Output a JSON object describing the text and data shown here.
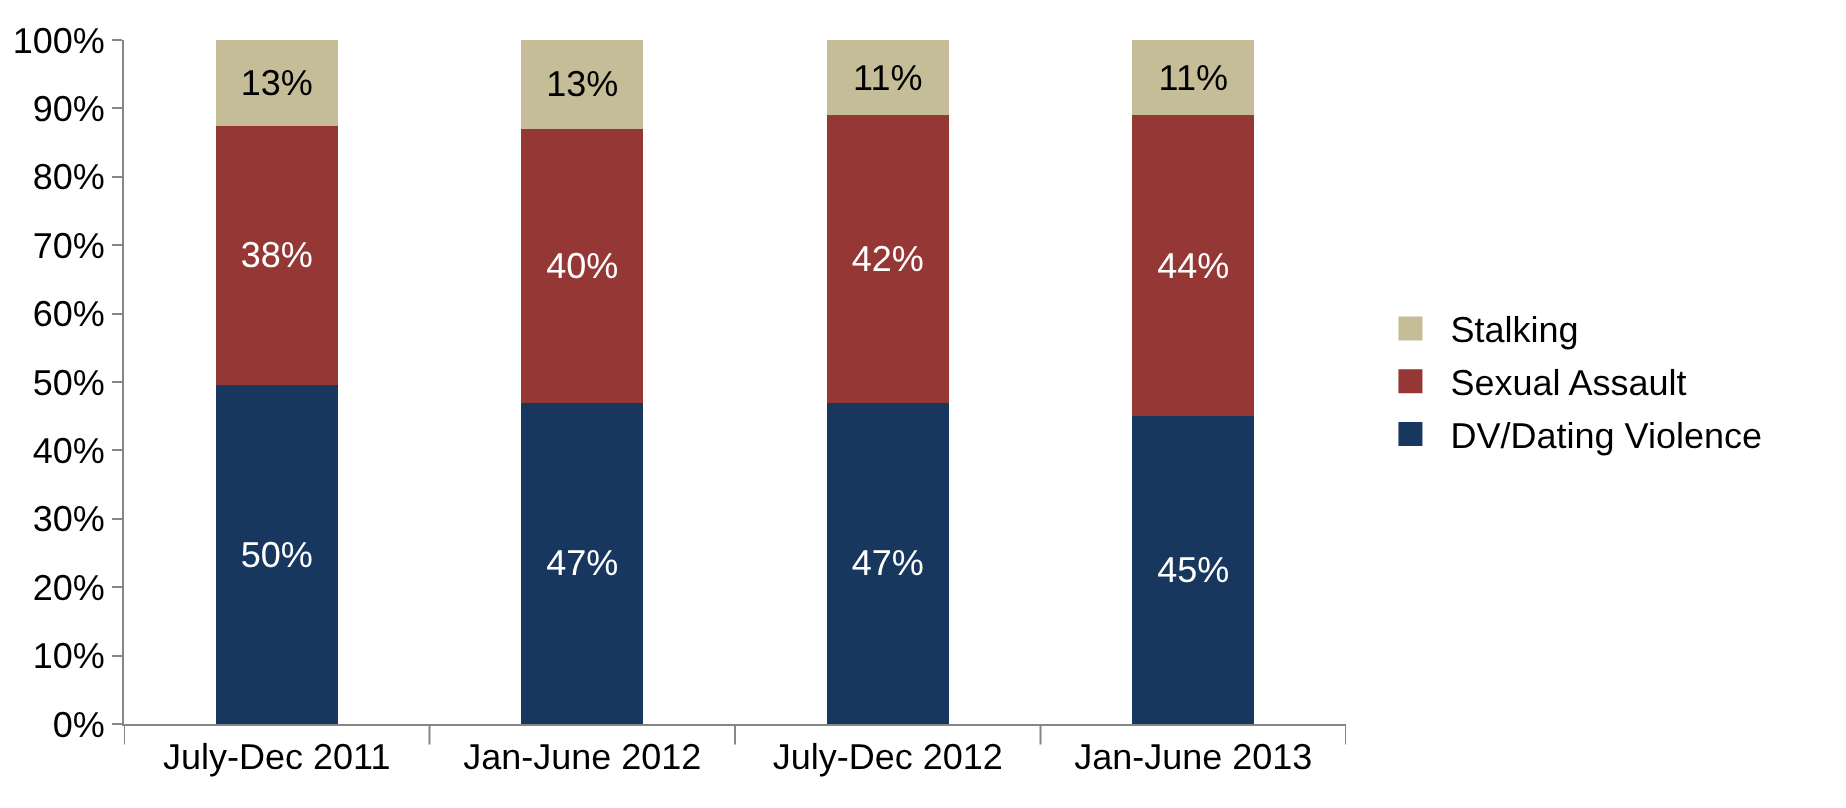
{
  "chart_data": {
    "type": "bar",
    "stacked": true,
    "categories": [
      "July-Dec 2011",
      "Jan-June 2012",
      "July-Dec 2012",
      "Jan-June 2013"
    ],
    "series": [
      {
        "name": "DV/Dating Violence",
        "color": "#17375e",
        "values": [
          49.5,
          47,
          47,
          45
        ],
        "value_labels": [
          "50%",
          "47%",
          "47%",
          "45%"
        ]
      },
      {
        "name": "Sexual Assault",
        "color": "#953735",
        "values": [
          38,
          40,
          42,
          44
        ],
        "value_labels": [
          "38%",
          "40%",
          "42%",
          "44%"
        ]
      },
      {
        "name": "Stalking",
        "color": "#c4bd97",
        "values": [
          12.5,
          13,
          11,
          11
        ],
        "value_labels": [
          "13%",
          "13%",
          "11%",
          "11%"
        ]
      }
    ],
    "ylim": [
      0,
      100
    ],
    "yticks": [
      {
        "value": 0,
        "label": "0%"
      },
      {
        "value": 10,
        "label": "10%"
      },
      {
        "value": 20,
        "label": "20%"
      },
      {
        "value": 30,
        "label": "30%"
      },
      {
        "value": 40,
        "label": "40%"
      },
      {
        "value": 50,
        "label": "50%"
      },
      {
        "value": 60,
        "label": "60%"
      },
      {
        "value": 70,
        "label": "70%"
      },
      {
        "value": 80,
        "label": "80%"
      },
      {
        "value": 90,
        "label": "90%"
      },
      {
        "value": 100,
        "label": "100%"
      }
    ],
    "grid": false,
    "legend": "right"
  }
}
